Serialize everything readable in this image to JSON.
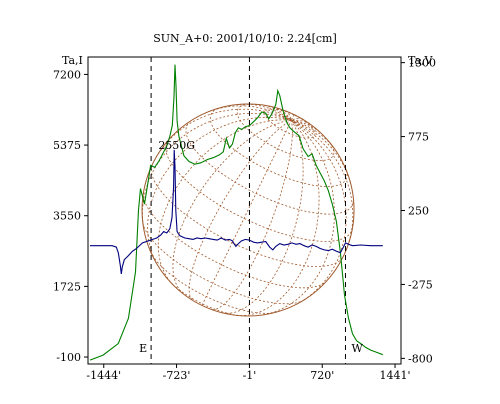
{
  "chart_data": {
    "type": "line",
    "title": "SUN_A+0: 2001/10/10: 2.24[cm]",
    "x_axis": {
      "range": [
        -1600,
        1500
      ],
      "tick_labels": [
        "-1444'",
        "-723'",
        "-1'",
        "720'",
        "1441'"
      ],
      "tick_values": [
        -1444,
        -723,
        -1,
        720,
        1441
      ]
    },
    "y_left": {
      "label": "Ta,I",
      "range": [
        -280,
        7650
      ],
      "tick_labels": [
        "7200",
        "5375",
        "3550",
        "1725",
        "-100"
      ],
      "tick_values": [
        7200,
        5375,
        3550,
        1725,
        -100
      ]
    },
    "y_right": {
      "label": "Ta,V",
      "range": [
        -840,
        1340
      ],
      "tick_labels": [
        "1300",
        "775",
        "250",
        "-275",
        "-800"
      ],
      "tick_values": [
        1300,
        775,
        250,
        -275,
        -800
      ]
    },
    "limb_markers": [
      {
        "label": "E",
        "x": -975
      },
      {
        "label": "-1'",
        "x": -1
      },
      {
        "label": "W",
        "x": 950
      }
    ],
    "annotations": [
      {
        "text": "2550G",
        "x": -745,
        "y_I": 5375
      }
    ],
    "series": [
      {
        "axis": "I",
        "color": "#008000",
        "points": [
          [
            -1580,
            -180
          ],
          [
            -1450,
            -50
          ],
          [
            -1300,
            250
          ],
          [
            -1200,
            900
          ],
          [
            -1130,
            2100
          ],
          [
            -1100,
            3700
          ],
          [
            -1080,
            4250
          ],
          [
            -1060,
            4050
          ],
          [
            -1040,
            3850
          ],
          [
            -1010,
            4350
          ],
          [
            -980,
            4850
          ],
          [
            -940,
            4800
          ],
          [
            -900,
            4950
          ],
          [
            -860,
            5150
          ],
          [
            -820,
            5350
          ],
          [
            -790,
            5600
          ],
          [
            -765,
            5880
          ],
          [
            -748,
            6620
          ],
          [
            -738,
            7450
          ],
          [
            -728,
            6900
          ],
          [
            -718,
            6000
          ],
          [
            -700,
            5600
          ],
          [
            -650,
            5100
          ],
          [
            -600,
            4950
          ],
          [
            -540,
            4880
          ],
          [
            -480,
            4920
          ],
          [
            -420,
            5000
          ],
          [
            -360,
            5050
          ],
          [
            -300,
            5120
          ],
          [
            -260,
            5200
          ],
          [
            -230,
            5550
          ],
          [
            -200,
            5300
          ],
          [
            -170,
            5400
          ],
          [
            -140,
            5700
          ],
          [
            -110,
            5820
          ],
          [
            -80,
            5780
          ],
          [
            -40,
            5850
          ],
          [
            0,
            5880
          ],
          [
            40,
            5980
          ],
          [
            80,
            6080
          ],
          [
            120,
            6230
          ],
          [
            160,
            6200
          ],
          [
            190,
            6050
          ],
          [
            220,
            6180
          ],
          [
            260,
            6420
          ],
          [
            280,
            6780
          ],
          [
            300,
            6650
          ],
          [
            330,
            6280
          ],
          [
            370,
            5950
          ],
          [
            400,
            5820
          ],
          [
            440,
            5720
          ],
          [
            490,
            5620
          ],
          [
            530,
            5280
          ],
          [
            580,
            5080
          ],
          [
            620,
            5150
          ],
          [
            660,
            4850
          ],
          [
            700,
            4650
          ],
          [
            740,
            4450
          ],
          [
            780,
            4200
          ],
          [
            820,
            3850
          ],
          [
            860,
            3400
          ],
          [
            900,
            2600
          ],
          [
            940,
            1500
          ],
          [
            980,
            900
          ],
          [
            1020,
            500
          ],
          [
            1060,
            320
          ],
          [
            1100,
            250
          ],
          [
            1150,
            150
          ],
          [
            1200,
            80
          ],
          [
            1260,
            20
          ],
          [
            1320,
            -40
          ]
        ]
      },
      {
        "axis": "V",
        "color": "#00007f",
        "points": [
          [
            -1580,
            0
          ],
          [
            -1450,
            0
          ],
          [
            -1360,
            0
          ],
          [
            -1320,
            -10
          ],
          [
            -1300,
            -50
          ],
          [
            -1280,
            -140
          ],
          [
            -1270,
            -200
          ],
          [
            -1260,
            -150
          ],
          [
            -1240,
            -100
          ],
          [
            -1200,
            -70
          ],
          [
            -1160,
            -40
          ],
          [
            -1120,
            -20
          ],
          [
            -1060,
            20
          ],
          [
            -1000,
            35
          ],
          [
            -960,
            45
          ],
          [
            -920,
            55
          ],
          [
            -880,
            75
          ],
          [
            -850,
            100
          ],
          [
            -820,
            90
          ],
          [
            -790,
            120
          ],
          [
            -768,
            200
          ],
          [
            -752,
            420
          ],
          [
            -746,
            680
          ],
          [
            -738,
            560
          ],
          [
            -730,
            250
          ],
          [
            -718,
            100
          ],
          [
            -690,
            70
          ],
          [
            -640,
            55
          ],
          [
            -600,
            50
          ],
          [
            -560,
            45
          ],
          [
            -520,
            55
          ],
          [
            -480,
            50
          ],
          [
            -440,
            55
          ],
          [
            -400,
            50
          ],
          [
            -360,
            45
          ],
          [
            -320,
            40
          ],
          [
            -280,
            55
          ],
          [
            -240,
            40
          ],
          [
            -200,
            45
          ],
          [
            -170,
            35
          ],
          [
            -150,
            10
          ],
          [
            -135,
            -5
          ],
          [
            -110,
            15
          ],
          [
            -80,
            35
          ],
          [
            -40,
            45
          ],
          [
            0,
            40
          ],
          [
            40,
            25
          ],
          [
            80,
            20
          ],
          [
            120,
            25
          ],
          [
            160,
            30
          ],
          [
            200,
            -10
          ],
          [
            230,
            -30
          ],
          [
            260,
            -5
          ],
          [
            300,
            15
          ],
          [
            340,
            5
          ],
          [
            380,
            10
          ],
          [
            420,
            20
          ],
          [
            460,
            10
          ],
          [
            500,
            15
          ],
          [
            540,
            0
          ],
          [
            580,
            -10
          ],
          [
            620,
            5
          ],
          [
            660,
            -5
          ],
          [
            700,
            -20
          ],
          [
            740,
            -30
          ],
          [
            780,
            -35
          ],
          [
            820,
            -25
          ],
          [
            860,
            -40
          ],
          [
            900,
            -50
          ],
          [
            930,
            -10
          ],
          [
            950,
            20
          ],
          [
            980,
            10
          ],
          [
            1020,
            0
          ],
          [
            1100,
            5
          ],
          [
            1200,
            0
          ],
          [
            1320,
            0
          ]
        ]
      }
    ]
  }
}
